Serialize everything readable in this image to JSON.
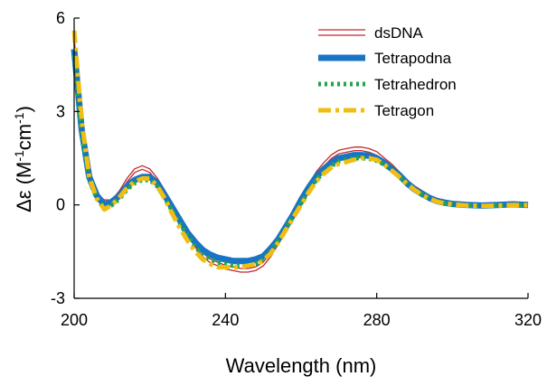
{
  "chart_data": {
    "type": "line",
    "xlabel": "Wavelength (nm)",
    "ylabel_main": "Δε (M",
    "ylabel_sup1": "-1",
    "ylabel_mid": "cm",
    "ylabel_sup2": "-1",
    "ylabel_end": ")",
    "xlim": [
      200,
      320
    ],
    "ylim": [
      -3,
      6
    ],
    "x_ticks": [
      200,
      240,
      280,
      320
    ],
    "x_tick_labels": [
      "200",
      "240",
      "280",
      "320"
    ],
    "y_ticks": [
      -3,
      0,
      3,
      6
    ],
    "y_tick_labels": [
      "-3",
      "0",
      "3",
      "6"
    ],
    "grid": false,
    "legend_position": "top-right",
    "x": [
      200,
      202,
      204,
      206,
      208,
      210,
      212,
      214,
      216,
      218,
      220,
      222,
      224,
      226,
      228,
      230,
      232,
      234,
      236,
      238,
      240,
      242,
      244,
      246,
      248,
      250,
      252,
      254,
      256,
      258,
      260,
      262,
      264,
      266,
      268,
      270,
      272,
      274,
      276,
      278,
      280,
      282,
      284,
      286,
      288,
      290,
      292,
      294,
      296,
      298,
      300,
      304,
      308,
      312,
      316,
      320
    ],
    "series": [
      {
        "name": "dsDNA",
        "color": "#c0282d",
        "style": "double",
        "values": [
          5.3,
          2.6,
          0.9,
          0.3,
          0.1,
          0.1,
          0.4,
          0.8,
          1.1,
          1.2,
          1.1,
          0.8,
          0.4,
          0.0,
          -0.5,
          -0.9,
          -1.3,
          -1.6,
          -1.8,
          -1.9,
          -2.0,
          -2.05,
          -2.1,
          -2.1,
          -2.05,
          -1.9,
          -1.6,
          -1.2,
          -0.8,
          -0.3,
          0.2,
          0.6,
          1.0,
          1.3,
          1.55,
          1.7,
          1.75,
          1.8,
          1.8,
          1.75,
          1.65,
          1.45,
          1.25,
          1.0,
          0.75,
          0.55,
          0.4,
          0.25,
          0.15,
          0.1,
          0.05,
          0.0,
          -0.02,
          0.0,
          0.02,
          0.0
        ]
      },
      {
        "name": "Tetrapodna",
        "color": "#1874c4",
        "style": "solid",
        "values": [
          5.0,
          2.4,
          0.9,
          0.3,
          0.0,
          0.1,
          0.3,
          0.6,
          0.8,
          0.9,
          0.9,
          0.7,
          0.3,
          -0.1,
          -0.5,
          -0.9,
          -1.2,
          -1.45,
          -1.6,
          -1.7,
          -1.75,
          -1.8,
          -1.8,
          -1.8,
          -1.75,
          -1.65,
          -1.4,
          -1.1,
          -0.7,
          -0.3,
          0.15,
          0.55,
          0.9,
          1.15,
          1.35,
          1.5,
          1.55,
          1.6,
          1.6,
          1.58,
          1.5,
          1.35,
          1.15,
          0.95,
          0.7,
          0.5,
          0.35,
          0.22,
          0.12,
          0.07,
          0.03,
          0.0,
          -0.02,
          0.0,
          0.02,
          0.0
        ]
      },
      {
        "name": "Tetrahedron",
        "color": "#1ea64b",
        "style": "dotted",
        "values": [
          4.8,
          2.3,
          0.8,
          0.2,
          -0.1,
          0.0,
          0.2,
          0.5,
          0.7,
          0.8,
          0.8,
          0.6,
          0.2,
          -0.2,
          -0.6,
          -1.0,
          -1.35,
          -1.6,
          -1.75,
          -1.85,
          -1.9,
          -1.95,
          -1.95,
          -1.95,
          -1.9,
          -1.75,
          -1.5,
          -1.15,
          -0.75,
          -0.35,
          0.05,
          0.45,
          0.8,
          1.05,
          1.25,
          1.4,
          1.45,
          1.5,
          1.5,
          1.48,
          1.42,
          1.3,
          1.1,
          0.9,
          0.68,
          0.48,
          0.33,
          0.2,
          0.1,
          0.05,
          0.02,
          -0.02,
          -0.04,
          -0.02,
          0.0,
          -0.02
        ]
      },
      {
        "name": "Tetragon",
        "color": "#f0be12",
        "style": "dashdot",
        "values": [
          5.6,
          2.7,
          0.9,
          0.2,
          -0.15,
          0.0,
          0.25,
          0.55,
          0.75,
          0.85,
          0.85,
          0.6,
          0.2,
          -0.3,
          -0.75,
          -1.15,
          -1.5,
          -1.75,
          -1.9,
          -2.0,
          -2.0,
          -2.0,
          -2.0,
          -1.95,
          -1.9,
          -1.8,
          -1.55,
          -1.2,
          -0.8,
          -0.4,
          0.0,
          0.4,
          0.75,
          1.0,
          1.2,
          1.32,
          1.38,
          1.45,
          1.5,
          1.5,
          1.45,
          1.3,
          1.1,
          0.9,
          0.68,
          0.48,
          0.32,
          0.2,
          0.1,
          0.05,
          0.02,
          -0.02,
          -0.03,
          -0.02,
          0.0,
          -0.01
        ]
      }
    ]
  }
}
